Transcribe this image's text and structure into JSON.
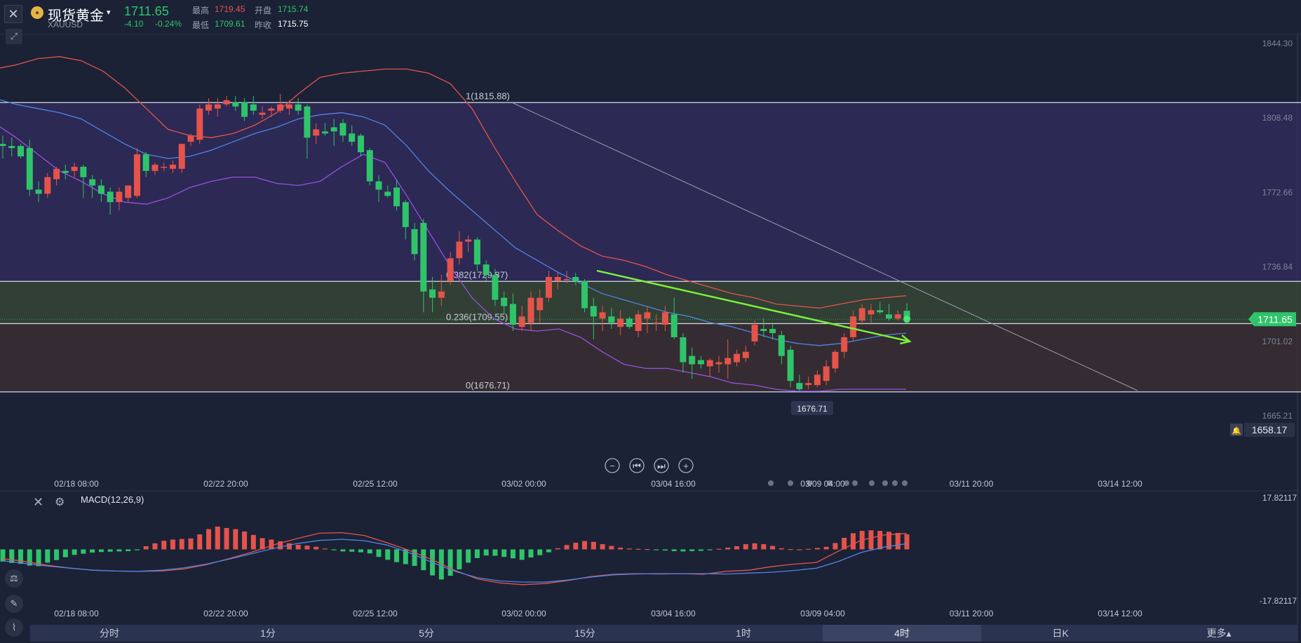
{
  "header": {
    "close_icon": "close-icon",
    "expand_icon": "expand-arrows-icon",
    "symbol_icon": "gold-coin-icon",
    "symbol_name": "现货黄金",
    "symbol_caret": "▾",
    "symbol_code": "XAUUSD",
    "last_price": "1711.65",
    "change_abs": "-4.10",
    "change_pct": "-0.24%",
    "stats": [
      {
        "label": "最高",
        "value": "1719.45",
        "color": "#e5534b"
      },
      {
        "label": "开盘",
        "value": "1715.74",
        "color": "#2fc46a"
      },
      {
        "label": "最低",
        "value": "1709.61",
        "color": "#2fc46a"
      },
      {
        "label": "昨收",
        "value": "1715.75",
        "color": "#ffffff"
      }
    ]
  },
  "colors": {
    "background": "#1b2236",
    "up": "#e5534b",
    "down": "#2fc46a",
    "price_tag": "#2fc46a",
    "trendline": "#7cf13a",
    "boll_upper": "#e5534b",
    "boll_mid": "#4f84e6",
    "boll_lower": "#9a4fe0",
    "fib_zone_top": "#3a2f6e",
    "fib_zone_mid": "#3a4a36",
    "fib_zone_low": "#3e3032"
  },
  "chart_data": [
    {
      "type": "candlestick",
      "symbol": "XAUUSD",
      "interval": "4时",
      "y_axis_ticks": [
        "1844.30",
        "1808.48",
        "1772.66",
        "1736.84",
        "1701.02",
        "1665.21"
      ],
      "ylim": [
        1658.17,
        1844.3
      ],
      "x_axis_ticks": [
        "02/18 08:00",
        "02/22 20:00",
        "02/25 12:00",
        "03/02 00:00",
        "03/04 16:00",
        "03/09 04:00",
        "03/11 20:00",
        "03/14 12:00"
      ],
      "last_price_tag": "1711.65",
      "alert_price": "1658.17",
      "low_marker": "1676.71",
      "fibonacci": [
        {
          "label": "1(1815.88)",
          "price": 1815.88
        },
        {
          "label": "0.382(1729.87)",
          "price": 1729.87
        },
        {
          "label": "0.236(1709.55)",
          "price": 1709.55
        },
        {
          "label": "0(1676.71)",
          "price": 1676.71
        }
      ],
      "candles": [
        {
          "o": 1796,
          "h": 1800,
          "l": 1789,
          "c": 1795
        },
        {
          "o": 1795,
          "h": 1799,
          "l": 1790,
          "c": 1794
        },
        {
          "o": 1795,
          "h": 1796,
          "l": 1789,
          "c": 1790
        },
        {
          "o": 1794,
          "h": 1798,
          "l": 1771,
          "c": 1774
        },
        {
          "o": 1774,
          "h": 1778,
          "l": 1768,
          "c": 1772
        },
        {
          "o": 1772,
          "h": 1782,
          "l": 1770,
          "c": 1780
        },
        {
          "o": 1779,
          "h": 1785,
          "l": 1776,
          "c": 1784
        },
        {
          "o": 1783,
          "h": 1786,
          "l": 1779,
          "c": 1782
        },
        {
          "o": 1783,
          "h": 1787,
          "l": 1780,
          "c": 1785
        },
        {
          "o": 1785,
          "h": 1786,
          "l": 1770,
          "c": 1780
        },
        {
          "o": 1779,
          "h": 1781,
          "l": 1770,
          "c": 1776
        },
        {
          "o": 1776,
          "h": 1779,
          "l": 1768,
          "c": 1772
        },
        {
          "o": 1773,
          "h": 1775,
          "l": 1762,
          "c": 1768
        },
        {
          "o": 1768,
          "h": 1775,
          "l": 1764,
          "c": 1773
        },
        {
          "o": 1770,
          "h": 1776,
          "l": 1768,
          "c": 1776
        },
        {
          "o": 1771,
          "h": 1794,
          "l": 1770,
          "c": 1791
        },
        {
          "o": 1791,
          "h": 1792,
          "l": 1780,
          "c": 1783
        },
        {
          "o": 1783,
          "h": 1787,
          "l": 1781,
          "c": 1786
        },
        {
          "o": 1785,
          "h": 1787,
          "l": 1783,
          "c": 1785
        },
        {
          "o": 1784,
          "h": 1788,
          "l": 1782,
          "c": 1786
        },
        {
          "o": 1784,
          "h": 1796,
          "l": 1782,
          "c": 1796
        },
        {
          "o": 1797,
          "h": 1801,
          "l": 1795,
          "c": 1800
        },
        {
          "o": 1798,
          "h": 1815,
          "l": 1796,
          "c": 1813
        },
        {
          "o": 1812,
          "h": 1818,
          "l": 1810,
          "c": 1815
        },
        {
          "o": 1813,
          "h": 1818,
          "l": 1809,
          "c": 1815
        },
        {
          "o": 1815,
          "h": 1819,
          "l": 1814,
          "c": 1817
        },
        {
          "o": 1816,
          "h": 1819,
          "l": 1812,
          "c": 1814
        },
        {
          "o": 1816,
          "h": 1818,
          "l": 1807,
          "c": 1809
        },
        {
          "o": 1815,
          "h": 1819,
          "l": 1810,
          "c": 1812
        },
        {
          "o": 1810,
          "h": 1814,
          "l": 1808,
          "c": 1811
        },
        {
          "o": 1812,
          "h": 1814,
          "l": 1809,
          "c": 1813
        },
        {
          "o": 1812,
          "h": 1820,
          "l": 1811,
          "c": 1815
        },
        {
          "o": 1813,
          "h": 1817,
          "l": 1810,
          "c": 1815
        },
        {
          "o": 1815,
          "h": 1818,
          "l": 1810,
          "c": 1812
        },
        {
          "o": 1814,
          "h": 1815,
          "l": 1789,
          "c": 1799
        },
        {
          "o": 1800,
          "h": 1806,
          "l": 1796,
          "c": 1803
        },
        {
          "o": 1802,
          "h": 1806,
          "l": 1800,
          "c": 1801
        },
        {
          "o": 1804,
          "h": 1808,
          "l": 1795,
          "c": 1802
        },
        {
          "o": 1806,
          "h": 1808,
          "l": 1797,
          "c": 1800
        },
        {
          "o": 1801,
          "h": 1805,
          "l": 1795,
          "c": 1797
        },
        {
          "o": 1800,
          "h": 1801,
          "l": 1790,
          "c": 1792
        },
        {
          "o": 1793,
          "h": 1794,
          "l": 1776,
          "c": 1778
        },
        {
          "o": 1778,
          "h": 1781,
          "l": 1768,
          "c": 1774
        },
        {
          "o": 1773,
          "h": 1776,
          "l": 1770,
          "c": 1771
        },
        {
          "o": 1775,
          "h": 1779,
          "l": 1764,
          "c": 1766
        },
        {
          "o": 1768,
          "h": 1769,
          "l": 1750,
          "c": 1756
        },
        {
          "o": 1755,
          "h": 1758,
          "l": 1740,
          "c": 1743
        },
        {
          "o": 1758,
          "h": 1760,
          "l": 1715,
          "c": 1725
        },
        {
          "o": 1726,
          "h": 1732,
          "l": 1715,
          "c": 1722
        },
        {
          "o": 1722,
          "h": 1733,
          "l": 1718,
          "c": 1725
        },
        {
          "o": 1730,
          "h": 1744,
          "l": 1728,
          "c": 1741
        },
        {
          "o": 1741,
          "h": 1754,
          "l": 1738,
          "c": 1749
        },
        {
          "o": 1749,
          "h": 1752,
          "l": 1744,
          "c": 1750
        },
        {
          "o": 1750,
          "h": 1751,
          "l": 1735,
          "c": 1738
        },
        {
          "o": 1738,
          "h": 1740,
          "l": 1730,
          "c": 1733
        },
        {
          "o": 1733,
          "h": 1736,
          "l": 1718,
          "c": 1721
        },
        {
          "o": 1722,
          "h": 1725,
          "l": 1714,
          "c": 1718
        },
        {
          "o": 1719,
          "h": 1724,
          "l": 1706,
          "c": 1709
        },
        {
          "o": 1708,
          "h": 1718,
          "l": 1706,
          "c": 1713
        },
        {
          "o": 1710,
          "h": 1725,
          "l": 1706,
          "c": 1722
        },
        {
          "o": 1716,
          "h": 1726,
          "l": 1710,
          "c": 1722
        },
        {
          "o": 1722,
          "h": 1735,
          "l": 1720,
          "c": 1732
        },
        {
          "o": 1730,
          "h": 1734,
          "l": 1726,
          "c": 1732
        },
        {
          "o": 1731,
          "h": 1735,
          "l": 1729,
          "c": 1731
        },
        {
          "o": 1732,
          "h": 1734,
          "l": 1728,
          "c": 1730
        },
        {
          "o": 1730,
          "h": 1731,
          "l": 1715,
          "c": 1717
        },
        {
          "o": 1718,
          "h": 1722,
          "l": 1702,
          "c": 1713
        },
        {
          "o": 1712,
          "h": 1718,
          "l": 1706,
          "c": 1715
        },
        {
          "o": 1713,
          "h": 1717,
          "l": 1707,
          "c": 1710
        },
        {
          "o": 1708,
          "h": 1716,
          "l": 1704,
          "c": 1712
        },
        {
          "o": 1712,
          "h": 1713,
          "l": 1707,
          "c": 1708
        },
        {
          "o": 1706,
          "h": 1716,
          "l": 1703,
          "c": 1714
        },
        {
          "o": 1712,
          "h": 1718,
          "l": 1705,
          "c": 1715
        },
        {
          "o": 1710,
          "h": 1714,
          "l": 1706,
          "c": 1710
        },
        {
          "o": 1709,
          "h": 1718,
          "l": 1706,
          "c": 1715
        },
        {
          "o": 1714,
          "h": 1722,
          "l": 1702,
          "c": 1703
        },
        {
          "o": 1703,
          "h": 1705,
          "l": 1686,
          "c": 1691
        },
        {
          "o": 1694,
          "h": 1698,
          "l": 1683,
          "c": 1690
        },
        {
          "o": 1692,
          "h": 1694,
          "l": 1688,
          "c": 1690
        },
        {
          "o": 1689,
          "h": 1693,
          "l": 1684,
          "c": 1692
        },
        {
          "o": 1690,
          "h": 1694,
          "l": 1686,
          "c": 1691
        },
        {
          "o": 1690,
          "h": 1702,
          "l": 1683,
          "c": 1693
        },
        {
          "o": 1691,
          "h": 1697,
          "l": 1689,
          "c": 1695
        },
        {
          "o": 1693,
          "h": 1699,
          "l": 1691,
          "c": 1696
        },
        {
          "o": 1701,
          "h": 1711,
          "l": 1699,
          "c": 1709
        },
        {
          "o": 1707,
          "h": 1712,
          "l": 1703,
          "c": 1706
        },
        {
          "o": 1707,
          "h": 1710,
          "l": 1702,
          "c": 1705
        },
        {
          "o": 1704,
          "h": 1706,
          "l": 1690,
          "c": 1694
        },
        {
          "o": 1697,
          "h": 1699,
          "l": 1679,
          "c": 1682
        },
        {
          "o": 1681,
          "h": 1685,
          "l": 1677,
          "c": 1678
        },
        {
          "o": 1680,
          "h": 1684,
          "l": 1678,
          "c": 1681
        },
        {
          "o": 1680,
          "h": 1687,
          "l": 1679,
          "c": 1685
        },
        {
          "o": 1682,
          "h": 1692,
          "l": 1680,
          "c": 1689
        },
        {
          "o": 1688,
          "h": 1697,
          "l": 1686,
          "c": 1696
        },
        {
          "o": 1696,
          "h": 1705,
          "l": 1693,
          "c": 1703
        },
        {
          "o": 1703,
          "h": 1716,
          "l": 1701,
          "c": 1713
        },
        {
          "o": 1711,
          "h": 1719,
          "l": 1709,
          "c": 1717
        },
        {
          "o": 1714,
          "h": 1719,
          "l": 1710,
          "c": 1716
        },
        {
          "o": 1716,
          "h": 1720,
          "l": 1714,
          "c": 1715
        },
        {
          "o": 1714,
          "h": 1719,
          "l": 1711,
          "c": 1712
        },
        {
          "o": 1712,
          "h": 1716,
          "l": 1711,
          "c": 1714
        },
        {
          "o": 1715.74,
          "h": 1719.45,
          "l": 1709.61,
          "c": 1711.65
        }
      ],
      "bollinger": {
        "upper": [
          1832,
          1834,
          1837,
          1838,
          1836,
          1831,
          1823,
          1813,
          1803,
          1800,
          1799,
          1801,
          1805,
          1811,
          1820,
          1828,
          1830,
          1831,
          1832,
          1832,
          1830,
          1825,
          1813,
          1795,
          1778,
          1762,
          1754,
          1747,
          1742,
          1740,
          1737,
          1733,
          1730,
          1727,
          1724,
          1722,
          1719,
          1718,
          1717,
          1719,
          1721,
          1722,
          1723
        ],
        "mid": [
          1818,
          1815,
          1813,
          1811,
          1808,
          1802,
          1796,
          1791,
          1789,
          1790,
          1793,
          1797,
          1801,
          1804,
          1808,
          1810,
          1811,
          1809,
          1805,
          1795,
          1783,
          1773,
          1764,
          1755,
          1746,
          1740,
          1734,
          1729,
          1724,
          1721,
          1718,
          1715,
          1713,
          1710,
          1708,
          1705,
          1702,
          1700,
          1699,
          1700,
          1702,
          1704,
          1705
        ],
        "lower": [
          1806,
          1799,
          1791,
          1783,
          1778,
          1772,
          1768,
          1767,
          1770,
          1775,
          1778,
          1780,
          1780,
          1777,
          1776,
          1778,
          1785,
          1791,
          1787,
          1771,
          1754,
          1737,
          1722,
          1712,
          1707,
          1706,
          1707,
          1703,
          1696,
          1690,
          1688,
          1688,
          1686,
          1684,
          1681,
          1680,
          1678,
          1677,
          1677,
          1678,
          1678,
          1678,
          1678
        ]
      },
      "trendline": {
        "from": [
          1,
          1735
        ],
        "to": [
          1.4,
          1701
        ]
      }
    },
    {
      "type": "bar",
      "indicator": "MACD(12,26,9)",
      "y_axis_ticks": [
        "17.82117",
        "-17.82117"
      ],
      "ylim": [
        -17.82117,
        17.82117
      ],
      "x_axis_ticks": [
        "02/18 08:00",
        "02/22 20:00",
        "02/25 12:00",
        "03/02 00:00",
        "03/04 16:00",
        "03/09 04:00",
        "03/11 20:00",
        "03/14 12:00"
      ],
      "histogram": [
        -4.2,
        -4.7,
        -5.0,
        -5.6,
        -5.8,
        -4.6,
        -3.7,
        -2.7,
        -1.9,
        -1.5,
        -1.1,
        -0.9,
        -0.8,
        -0.7,
        -0.6,
        -0.3,
        1.1,
        2.1,
        3.0,
        3.4,
        3.6,
        3.8,
        5.2,
        7.0,
        7.9,
        7.4,
        7.0,
        6.2,
        5.0,
        3.9,
        3.4,
        2.8,
        2.1,
        1.6,
        1.3,
        0.9,
        0.3,
        -0.3,
        -0.7,
        -0.8,
        -1.0,
        -1.4,
        -2.6,
        -3.6,
        -4.4,
        -5.1,
        -5.7,
        -7.2,
        -9.0,
        -10.4,
        -9.1,
        -6.9,
        -4.6,
        -3.0,
        -2.1,
        -2.2,
        -2.6,
        -3.1,
        -3.6,
        -2.8,
        -2.0,
        -1.0,
        0.4,
        1.5,
        2.3,
        2.9,
        2.6,
        1.8,
        1.2,
        0.6,
        0.3,
        0.2,
        0.1,
        -0.2,
        -0.4,
        -0.6,
        -0.7,
        -0.6,
        -0.5,
        -0.3,
        0.2,
        0.6,
        1.1,
        1.8,
        2.1,
        1.8,
        1.2,
        0.4,
        0.1,
        0.0,
        0.2,
        0.5,
        0.9,
        2.2,
        4.0,
        5.6,
        6.4,
        6.6,
        6.4,
        6.1,
        5.7,
        5.2
      ],
      "dif": [
        -3.2,
        -4.2,
        -5.5,
        -6.5,
        -7.2,
        -7.5,
        -7.6,
        -7.5,
        -6.8,
        -5.3,
        -3.2,
        -1.0,
        1.6,
        3.7,
        5.6,
        5.8,
        4.8,
        2.3,
        -0.4,
        -3.6,
        -7.2,
        -10.2,
        -11.6,
        -12.2,
        -11.8,
        -10.8,
        -9.4,
        -8.6,
        -8.4,
        -8.5,
        -8.4,
        -8.6,
        -7.6,
        -7.2,
        -6.0,
        -5.1,
        -4.5,
        -0.5,
        3.2,
        5.0,
        5.5
      ],
      "dea": [
        -3.9,
        -4.9,
        -5.8,
        -6.5,
        -7.2,
        -7.5,
        -7.6,
        -7.2,
        -6.4,
        -5.1,
        -3.4,
        -1.5,
        0.4,
        2.0,
        3.1,
        3.5,
        3.0,
        1.5,
        -1.2,
        -4.5,
        -7.6,
        -9.8,
        -10.9,
        -11.3,
        -11.3,
        -10.6,
        -9.6,
        -8.8,
        -8.5,
        -8.4,
        -8.4,
        -8.4,
        -8.5,
        -8.2,
        -7.9,
        -7.3,
        -6.5,
        -4.1,
        -1.0,
        0.8,
        2.0
      ]
    }
  ],
  "nav_controls": [
    {
      "name": "zoom-out-icon",
      "glyph": "−"
    },
    {
      "name": "step-back-icon",
      "glyph": "⏮"
    },
    {
      "name": "step-forward-icon",
      "glyph": "⏭"
    },
    {
      "name": "zoom-in-icon",
      "glyph": "+"
    }
  ],
  "indicator": {
    "name": "MACD(12,26,9)",
    "close_icon": "close-icon",
    "settings_icon": "gear-icon"
  },
  "side_tools": [
    {
      "name": "candle-style-icon",
      "glyph": "⚖"
    },
    {
      "name": "pencil-icon",
      "glyph": "✎"
    },
    {
      "name": "indicator-icon",
      "glyph": "⌇"
    }
  ],
  "timeframes": [
    {
      "label": "分时",
      "active": false
    },
    {
      "label": "1分",
      "active": false
    },
    {
      "label": "5分",
      "active": false
    },
    {
      "label": "15分",
      "active": false
    },
    {
      "label": "1时",
      "active": false
    },
    {
      "label": "4时",
      "active": true
    },
    {
      "label": "日K",
      "active": false
    },
    {
      "label": "更多▴",
      "active": false
    }
  ]
}
